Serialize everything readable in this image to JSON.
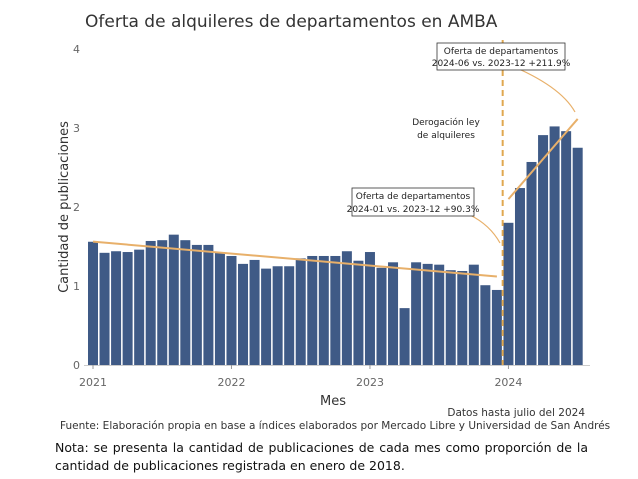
{
  "chart_data": {
    "type": "bar",
    "title": "Oferta de alquileres de departamentos en AMBA",
    "y_label": "Cantidad de publicaciones",
    "x_label": "Mes",
    "categories": [
      "2021",
      null,
      null,
      null,
      null,
      null,
      null,
      null,
      null,
      null,
      null,
      null,
      "2022",
      null,
      null,
      null,
      null,
      null,
      null,
      null,
      null,
      null,
      null,
      null,
      "2023",
      null,
      null,
      null,
      null,
      null,
      null,
      null,
      null,
      null,
      null,
      null,
      "2024",
      null,
      null,
      null,
      null,
      null,
      null
    ],
    "values": [
      1.56,
      1.42,
      1.44,
      1.43,
      1.46,
      1.57,
      1.58,
      1.65,
      1.58,
      1.52,
      1.52,
      1.43,
      1.38,
      1.28,
      1.33,
      1.22,
      1.25,
      1.25,
      1.35,
      1.38,
      1.38,
      1.38,
      1.44,
      1.32,
      1.43,
      1.23,
      1.3,
      0.72,
      1.3,
      1.28,
      1.27,
      1.2,
      1.19,
      1.27,
      1.01,
      0.95,
      1.8,
      2.24,
      2.57,
      2.91,
      3.02,
      2.96,
      2.75
    ],
    "color": "#3f5a86",
    "trend_color": "#e8b06a",
    "ylim": [
      0,
      4
    ],
    "yticks": [
      0,
      1,
      2,
      3,
      4
    ],
    "annotations": [
      {
        "lines": [
          "Oferta de departamentos",
          "2024-06 vs. 2023-12 +211.9%"
        ]
      },
      {
        "lines": [
          "Derogación ley",
          "de alquileres"
        ]
      },
      {
        "lines": [
          "Oferta de departamentos",
          "2024-01 vs. 2023-12 +90.3%"
        ]
      }
    ],
    "data_note": "Datos hasta julio del 2024",
    "source": "Fuente: Elaboración propia en base a índices elaborados por Mercado Libre y Universidad de San Andrés"
  },
  "note": "Nota: se presenta la cantidad de publicaciones de cada mes como proporción de la cantidad de publicaciones registrada en enero de 2018."
}
